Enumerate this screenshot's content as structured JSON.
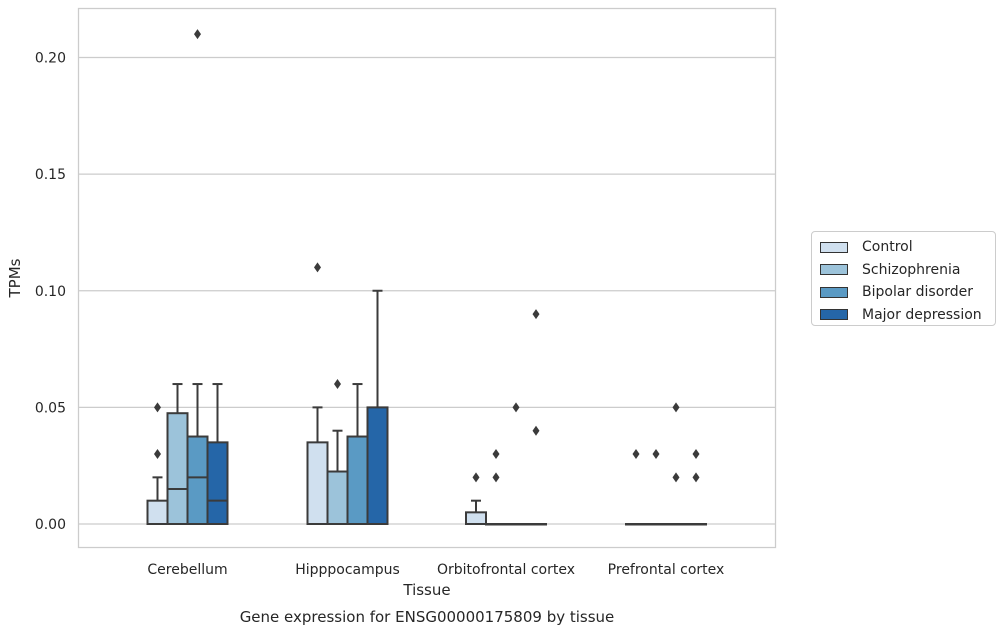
{
  "chart_data": {
    "type": "box",
    "title": "Gene expression for ENSG00000175809 by tissue",
    "xlabel": "Tissue",
    "ylabel": "TPMs",
    "ylim": [
      -0.01,
      0.22
    ],
    "yticks": [
      "0.00",
      "0.05",
      "0.10",
      "0.15",
      "0.20"
    ],
    "ytick_values": [
      0,
      0.05,
      0.1,
      0.15,
      0.2
    ],
    "grid": "horizontal",
    "legend_position": "right",
    "categories": [
      "Cerebellum",
      "Hipppocampus",
      "Orbitofrontal cortex",
      "Prefrontal cortex"
    ],
    "series": [
      {
        "name": "Control",
        "color": "#d0e0ef",
        "boxes": [
          {
            "q1": 0,
            "median": 0,
            "q3": 0.01,
            "whisker_low": 0,
            "whisker_high": 0.02,
            "outliers": [
              0.03,
              0.05
            ]
          },
          {
            "q1": 0,
            "median": 0,
            "q3": 0.035,
            "whisker_low": 0,
            "whisker_high": 0.05,
            "outliers": [
              0.11
            ]
          },
          {
            "q1": 0,
            "median": 0,
            "q3": 0.005,
            "whisker_low": 0,
            "whisker_high": 0.01,
            "outliers": [
              0.02
            ]
          },
          {
            "q1": 0,
            "median": 0,
            "q3": 0,
            "whisker_low": 0,
            "whisker_high": 0,
            "outliers": [
              0.03
            ]
          }
        ]
      },
      {
        "name": "Schizophrenia",
        "color": "#9cc3da",
        "boxes": [
          {
            "q1": 0,
            "median": 0.015,
            "q3": 0.0475,
            "whisker_low": 0,
            "whisker_high": 0.06,
            "outliers": []
          },
          {
            "q1": 0,
            "median": 0,
            "q3": 0.0225,
            "whisker_low": 0,
            "whisker_high": 0.04,
            "outliers": [
              0.06
            ]
          },
          {
            "q1": 0,
            "median": 0,
            "q3": 0,
            "whisker_low": 0,
            "whisker_high": 0,
            "outliers": [
              0.02,
              0.03
            ]
          },
          {
            "q1": 0,
            "median": 0,
            "q3": 0,
            "whisker_low": 0,
            "whisker_high": 0,
            "outliers": [
              0.03
            ]
          }
        ]
      },
      {
        "name": "Bipolar disorder",
        "color": "#5a9ac4",
        "boxes": [
          {
            "q1": 0,
            "median": 0.02,
            "q3": 0.0375,
            "whisker_low": 0,
            "whisker_high": 0.06,
            "outliers": [
              0.21
            ]
          },
          {
            "q1": 0,
            "median": 0,
            "q3": 0.0375,
            "whisker_low": 0,
            "whisker_high": 0.06,
            "outliers": []
          },
          {
            "q1": 0,
            "median": 0,
            "q3": 0,
            "whisker_low": 0,
            "whisker_high": 0,
            "outliers": [
              0.05
            ]
          },
          {
            "q1": 0,
            "median": 0,
            "q3": 0,
            "whisker_low": 0,
            "whisker_high": 0,
            "outliers": [
              0.02,
              0.05
            ]
          }
        ]
      },
      {
        "name": "Major depression",
        "color": "#2566a8",
        "boxes": [
          {
            "q1": 0,
            "median": 0.01,
            "q3": 0.035,
            "whisker_low": 0,
            "whisker_high": 0.06,
            "outliers": []
          },
          {
            "q1": 0,
            "median": 0,
            "q3": 0.05,
            "whisker_low": 0,
            "whisker_high": 0.1,
            "outliers": []
          },
          {
            "q1": 0,
            "median": 0,
            "q3": 0,
            "whisker_low": 0,
            "whisker_high": 0,
            "outliers": [
              0.04,
              0.09
            ]
          },
          {
            "q1": 0,
            "median": 0,
            "q3": 0,
            "whisker_low": 0,
            "whisker_high": 0,
            "outliers": [
              0.02,
              0.03
            ]
          }
        ]
      }
    ]
  }
}
